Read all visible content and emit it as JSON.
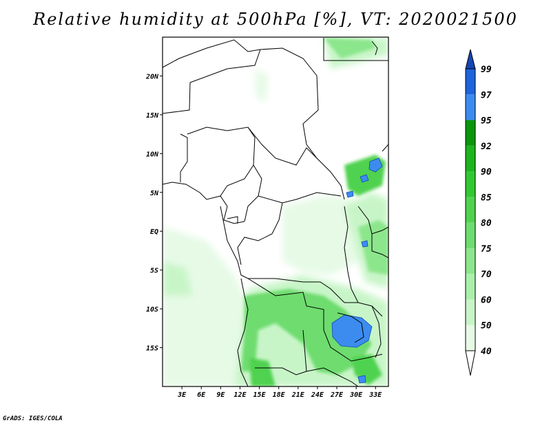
{
  "title": "Relative humidity at 500hPa [%], VT: 2020021500",
  "credit": "GrADS: IGES/COLA",
  "map": {
    "lon_range": [
      0,
      35
    ],
    "lat_range": [
      -20,
      25
    ],
    "lon_ticks": [
      3,
      6,
      9,
      12,
      15,
      18,
      21,
      24,
      27,
      30,
      33
    ],
    "lon_tick_labels": [
      "3E",
      "6E",
      "9E",
      "12E",
      "15E",
      "18E",
      "21E",
      "24E",
      "27E",
      "30E",
      "33E"
    ],
    "lat_ticks": [
      20,
      15,
      10,
      5,
      0,
      -5,
      -10,
      -15
    ],
    "lat_tick_labels": [
      "20N",
      "15N",
      "10N",
      "5N",
      "EQ",
      "5S",
      "10S",
      "15S"
    ]
  },
  "colorbar": {
    "levels": [
      "40",
      "50",
      "60",
      "70",
      "75",
      "80",
      "85",
      "90",
      "92",
      "95",
      "97",
      "99"
    ],
    "colors": [
      "#ffffff",
      "#e6fae6",
      "#c8f5c8",
      "#aaf0aa",
      "#8ce68c",
      "#6edc6e",
      "#50d250",
      "#32c832",
      "#1eb41e",
      "#0a960a",
      "#3c8cf0",
      "#1e64dc",
      "#1446b4"
    ]
  }
}
